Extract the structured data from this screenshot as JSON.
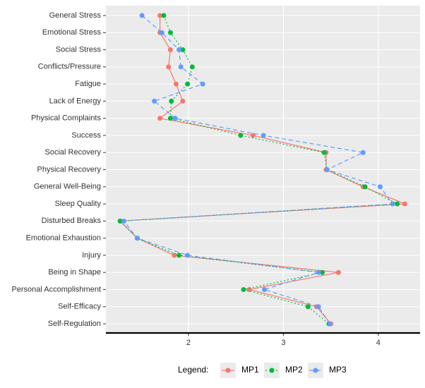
{
  "chart_data": {
    "type": "line",
    "orientation": "horizontal",
    "categories": [
      "General Stress",
      "Emotional Stress",
      "Social Stress",
      "Conflicts/Pressure",
      "Fatigue",
      "Lack of Energy",
      "Physical Complaints",
      "Success",
      "Social Recovery",
      "Physical Recovery",
      "General Well-Being",
      "Sleep Quality",
      "Disturbed Breaks",
      "Emotional Exhaustion",
      "Injury",
      "Being in Shape",
      "Personal Accomplishment",
      "Self-Efficacy",
      "Self-Regulation"
    ],
    "series": [
      {
        "name": "MP1",
        "color": "#F8766D",
        "dash": "solid",
        "values": [
          1.7,
          1.7,
          1.81,
          1.79,
          1.87,
          1.94,
          1.7,
          2.68,
          3.45,
          3.45,
          3.84,
          4.28,
          1.28,
          1.46,
          1.85,
          3.58,
          2.64,
          3.35,
          3.5
        ]
      },
      {
        "name": "MP2",
        "color": "#00BA38",
        "dash": "dotted",
        "values": [
          1.74,
          1.81,
          1.94,
          2.04,
          1.99,
          1.82,
          1.81,
          2.55,
          3.43,
          3.46,
          3.86,
          4.2,
          1.28,
          1.46,
          1.9,
          3.41,
          2.58,
          3.26,
          3.48
        ]
      },
      {
        "name": "MP3",
        "color": "#619CFF",
        "dash": "dashed",
        "values": [
          1.51,
          1.72,
          1.9,
          1.92,
          2.15,
          1.64,
          1.86,
          2.79,
          3.84,
          3.46,
          4.02,
          4.15,
          1.32,
          1.46,
          1.99,
          3.37,
          2.8,
          3.37,
          3.49
        ]
      }
    ],
    "xlim": [
      1.13,
      4.44
    ],
    "xticks": [
      2,
      3,
      4
    ],
    "grid": true,
    "legend_title": "Legend:",
    "legend_position": "bottom"
  }
}
